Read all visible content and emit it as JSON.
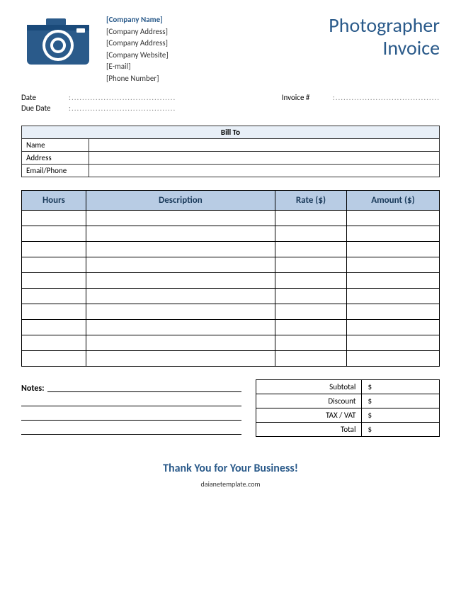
{
  "colors": {
    "brand": "#2a5a8a",
    "tableHeaderBg": "#b8cce4",
    "billToBg": "#e8eff7",
    "border": "#000000",
    "text": "#000000"
  },
  "header": {
    "companyName": "[Company Name]",
    "companyAddress1": "[Company Address]",
    "companyAddress2": "[Company Address]",
    "companyWebsite": "[Company Website]",
    "email": "[E-mail]",
    "phone": "[Phone Number]",
    "titleLine1": "Photographer",
    "titleLine2": "Invoice"
  },
  "meta": {
    "dateLabel": "Date",
    "dateValue": ":.......................................",
    "dueDateLabel": "Due Date",
    "dueDateValue": ":.......................................",
    "invoiceNumLabel": "Invoice #",
    "invoiceNumValue": ":......................................."
  },
  "billTo": {
    "header": "Bill To",
    "nameLabel": "Name",
    "nameValue": "",
    "addressLabel": "Address",
    "addressValue": "",
    "emailPhoneLabel": "Email/Phone",
    "emailPhoneValue": ""
  },
  "itemsTable": {
    "columns": [
      "Hours",
      "Description",
      "Rate ($)",
      "Amount ($)"
    ],
    "rowCount": 10
  },
  "notes": {
    "label": "Notes:",
    "lineCount": 4
  },
  "totals": {
    "rows": [
      {
        "label": "Subtotal",
        "value": "$"
      },
      {
        "label": "Discount",
        "value": "$"
      },
      {
        "label": "TAX / VAT",
        "value": "$"
      },
      {
        "label": "Total",
        "value": "$"
      }
    ]
  },
  "thankyou": "Thank You for Your Business!",
  "footer": "daianetemplate.com"
}
